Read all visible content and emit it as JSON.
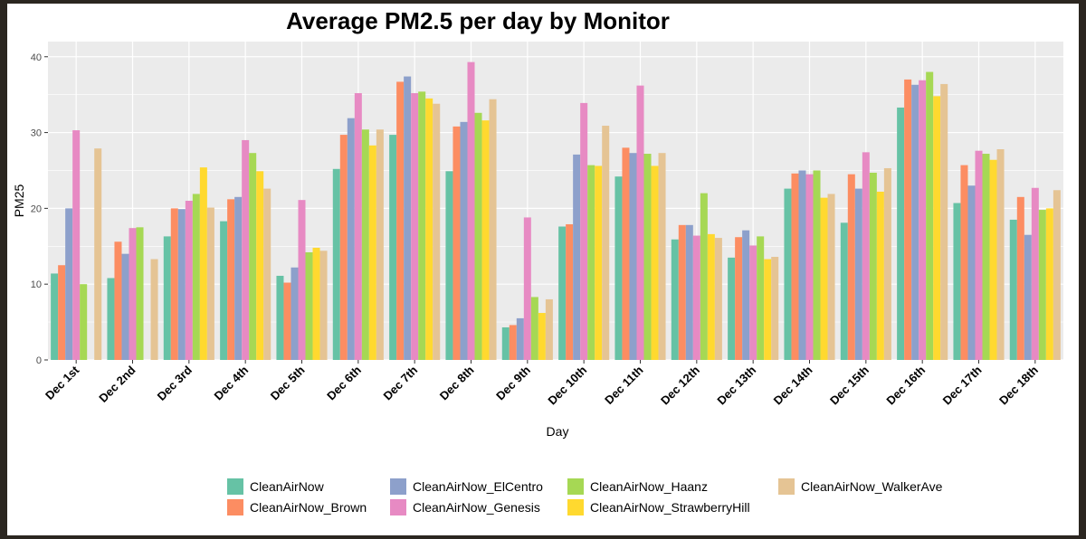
{
  "chart_data": {
    "type": "bar",
    "title": "Average PM2.5 per day by Monitor",
    "xlabel": "Day",
    "ylabel": "PM25",
    "ylim": [
      0,
      42
    ],
    "yticks": [
      0,
      10,
      20,
      30,
      40
    ],
    "grid": true,
    "legend_position": "bottom",
    "categories": [
      "Dec 1st",
      "Dec 2nd",
      "Dec 3rd",
      "Dec 4th",
      "Dec 5th",
      "Dec 6th",
      "Dec 7th",
      "Dec 8th",
      "Dec 9th",
      "Dec 10th",
      "Dec 11th",
      "Dec 12th",
      "Dec 13th",
      "Dec 14th",
      "Dec 15th",
      "Dec 16th",
      "Dec 17th",
      "Dec 18th"
    ],
    "series": [
      {
        "name": "CleanAirNow",
        "color": "#66c2a5",
        "values": [
          11.4,
          10.8,
          16.3,
          18.3,
          11.1,
          25.2,
          29.7,
          24.9,
          4.3,
          17.6,
          24.2,
          15.9,
          13.5,
          22.6,
          18.1,
          33.3,
          20.7,
          18.5
        ]
      },
      {
        "name": "CleanAirNow_Brown",
        "color": "#fc8d62",
        "values": [
          12.5,
          15.6,
          20.0,
          21.2,
          10.2,
          29.7,
          36.7,
          30.8,
          4.6,
          17.9,
          28.0,
          17.8,
          16.2,
          24.6,
          24.5,
          37.0,
          25.7,
          21.5
        ]
      },
      {
        "name": "CleanAirNow_ElCentro",
        "color": "#8da0cb",
        "values": [
          20.0,
          14.0,
          19.9,
          21.5,
          12.2,
          31.9,
          37.4,
          31.4,
          5.5,
          27.1,
          27.3,
          17.8,
          17.1,
          25.0,
          22.6,
          36.3,
          23.0,
          16.5
        ]
      },
      {
        "name": "CleanAirNow_Genesis",
        "color": "#e78ac3",
        "values": [
          30.3,
          17.4,
          21.0,
          29.0,
          21.1,
          35.2,
          35.2,
          39.3,
          18.8,
          33.9,
          36.2,
          16.4,
          15.1,
          24.5,
          27.4,
          36.9,
          27.6,
          22.7
        ]
      },
      {
        "name": "CleanAirNow_Haanz",
        "color": "#a6d854",
        "values": [
          10.0,
          17.5,
          21.9,
          27.3,
          14.2,
          30.4,
          35.4,
          32.6,
          8.3,
          25.7,
          27.2,
          22.0,
          16.3,
          25.0,
          24.7,
          38.0,
          27.2,
          19.8
        ]
      },
      {
        "name": "CleanAirNow_StrawberryHill",
        "color": "#ffd92f",
        "values": [
          null,
          null,
          25.4,
          24.9,
          14.8,
          28.3,
          34.5,
          31.6,
          6.2,
          25.6,
          25.6,
          16.6,
          13.3,
          21.4,
          22.2,
          34.8,
          26.4,
          20.0
        ]
      },
      {
        "name": "CleanAirNow_WalkerAve",
        "color": "#e5c494",
        "values": [
          27.9,
          13.3,
          20.1,
          22.6,
          14.4,
          30.4,
          33.8,
          34.4,
          8.0,
          30.9,
          27.3,
          16.1,
          13.6,
          21.9,
          25.3,
          36.4,
          27.8,
          22.4
        ]
      }
    ],
    "legend_rows": [
      [
        "CleanAirNow",
        "CleanAirNow_ElCentro",
        "CleanAirNow_Haanz",
        "CleanAirNow_WalkerAve"
      ],
      [
        "CleanAirNow_Brown",
        "CleanAirNow_Genesis",
        "CleanAirNow_StrawberryHill"
      ]
    ],
    "colors": {
      "panel_background": "#ebebeb",
      "grid": "#ffffff",
      "frame_background": "#2b2620"
    }
  }
}
